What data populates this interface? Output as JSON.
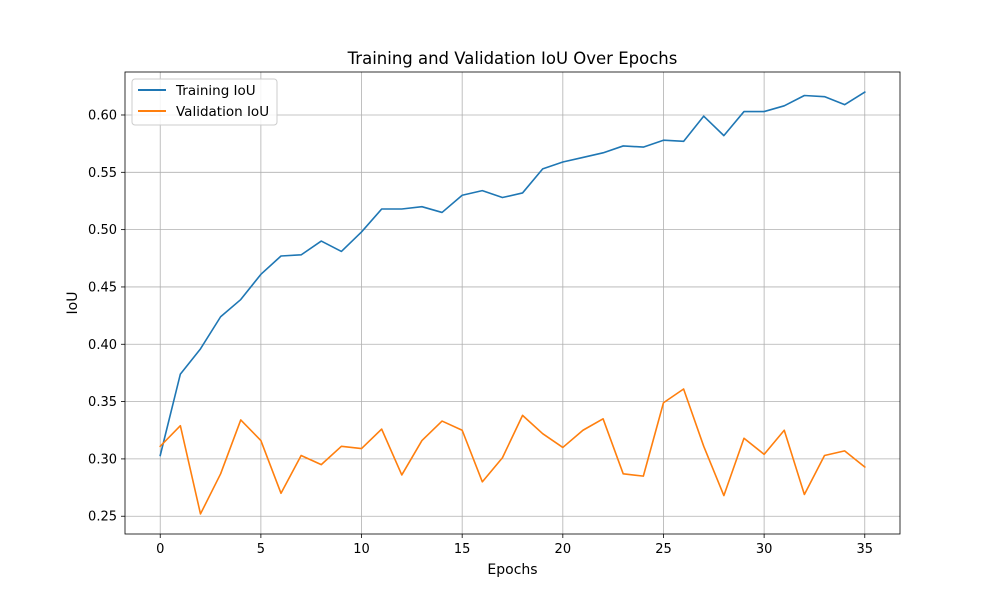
{
  "chart_data": {
    "type": "line",
    "title": "Training and Validation IoU Over Epochs",
    "xlabel": "Epochs",
    "ylabel": "IoU",
    "xlim": [
      -1.75,
      36.75
    ],
    "ylim": [
      0.2345,
      0.6375
    ],
    "xticks": [
      0,
      5,
      10,
      15,
      20,
      25,
      30,
      35
    ],
    "yticks": [
      0.25,
      0.3,
      0.35,
      0.4,
      0.45,
      0.5,
      0.55,
      0.6
    ],
    "ytick_labels": [
      "0.25",
      "0.30",
      "0.35",
      "0.40",
      "0.45",
      "0.50",
      "0.55",
      "0.60"
    ],
    "grid": true,
    "legend_position": "upper-left",
    "x": [
      0,
      1,
      2,
      3,
      4,
      5,
      6,
      7,
      8,
      9,
      10,
      11,
      12,
      13,
      14,
      15,
      16,
      17,
      18,
      19,
      20,
      21,
      22,
      23,
      24,
      25,
      26,
      27,
      28,
      29,
      30,
      31,
      32,
      33,
      34,
      35
    ],
    "series": [
      {
        "name": "Training IoU",
        "color": "#1f77b4",
        "values": [
          0.303,
          0.374,
          0.396,
          0.424,
          0.439,
          0.461,
          0.477,
          0.478,
          0.49,
          0.481,
          0.498,
          0.518,
          0.518,
          0.52,
          0.515,
          0.53,
          0.534,
          0.528,
          0.532,
          0.553,
          0.559,
          0.563,
          0.567,
          0.573,
          0.572,
          0.578,
          0.577,
          0.599,
          0.582,
          0.603,
          0.603,
          0.608,
          0.617,
          0.616,
          0.609,
          0.62
        ]
      },
      {
        "name": "Validation IoU",
        "color": "#ff7f0e",
        "values": [
          0.311,
          0.329,
          0.252,
          0.287,
          0.334,
          0.316,
          0.27,
          0.303,
          0.295,
          0.311,
          0.309,
          0.326,
          0.286,
          0.316,
          0.333,
          0.325,
          0.28,
          0.301,
          0.338,
          0.322,
          0.31,
          0.325,
          0.335,
          0.287,
          0.285,
          0.349,
          0.361,
          0.311,
          0.268,
          0.318,
          0.304,
          0.325,
          0.269,
          0.303,
          0.307,
          0.293
        ]
      }
    ]
  }
}
